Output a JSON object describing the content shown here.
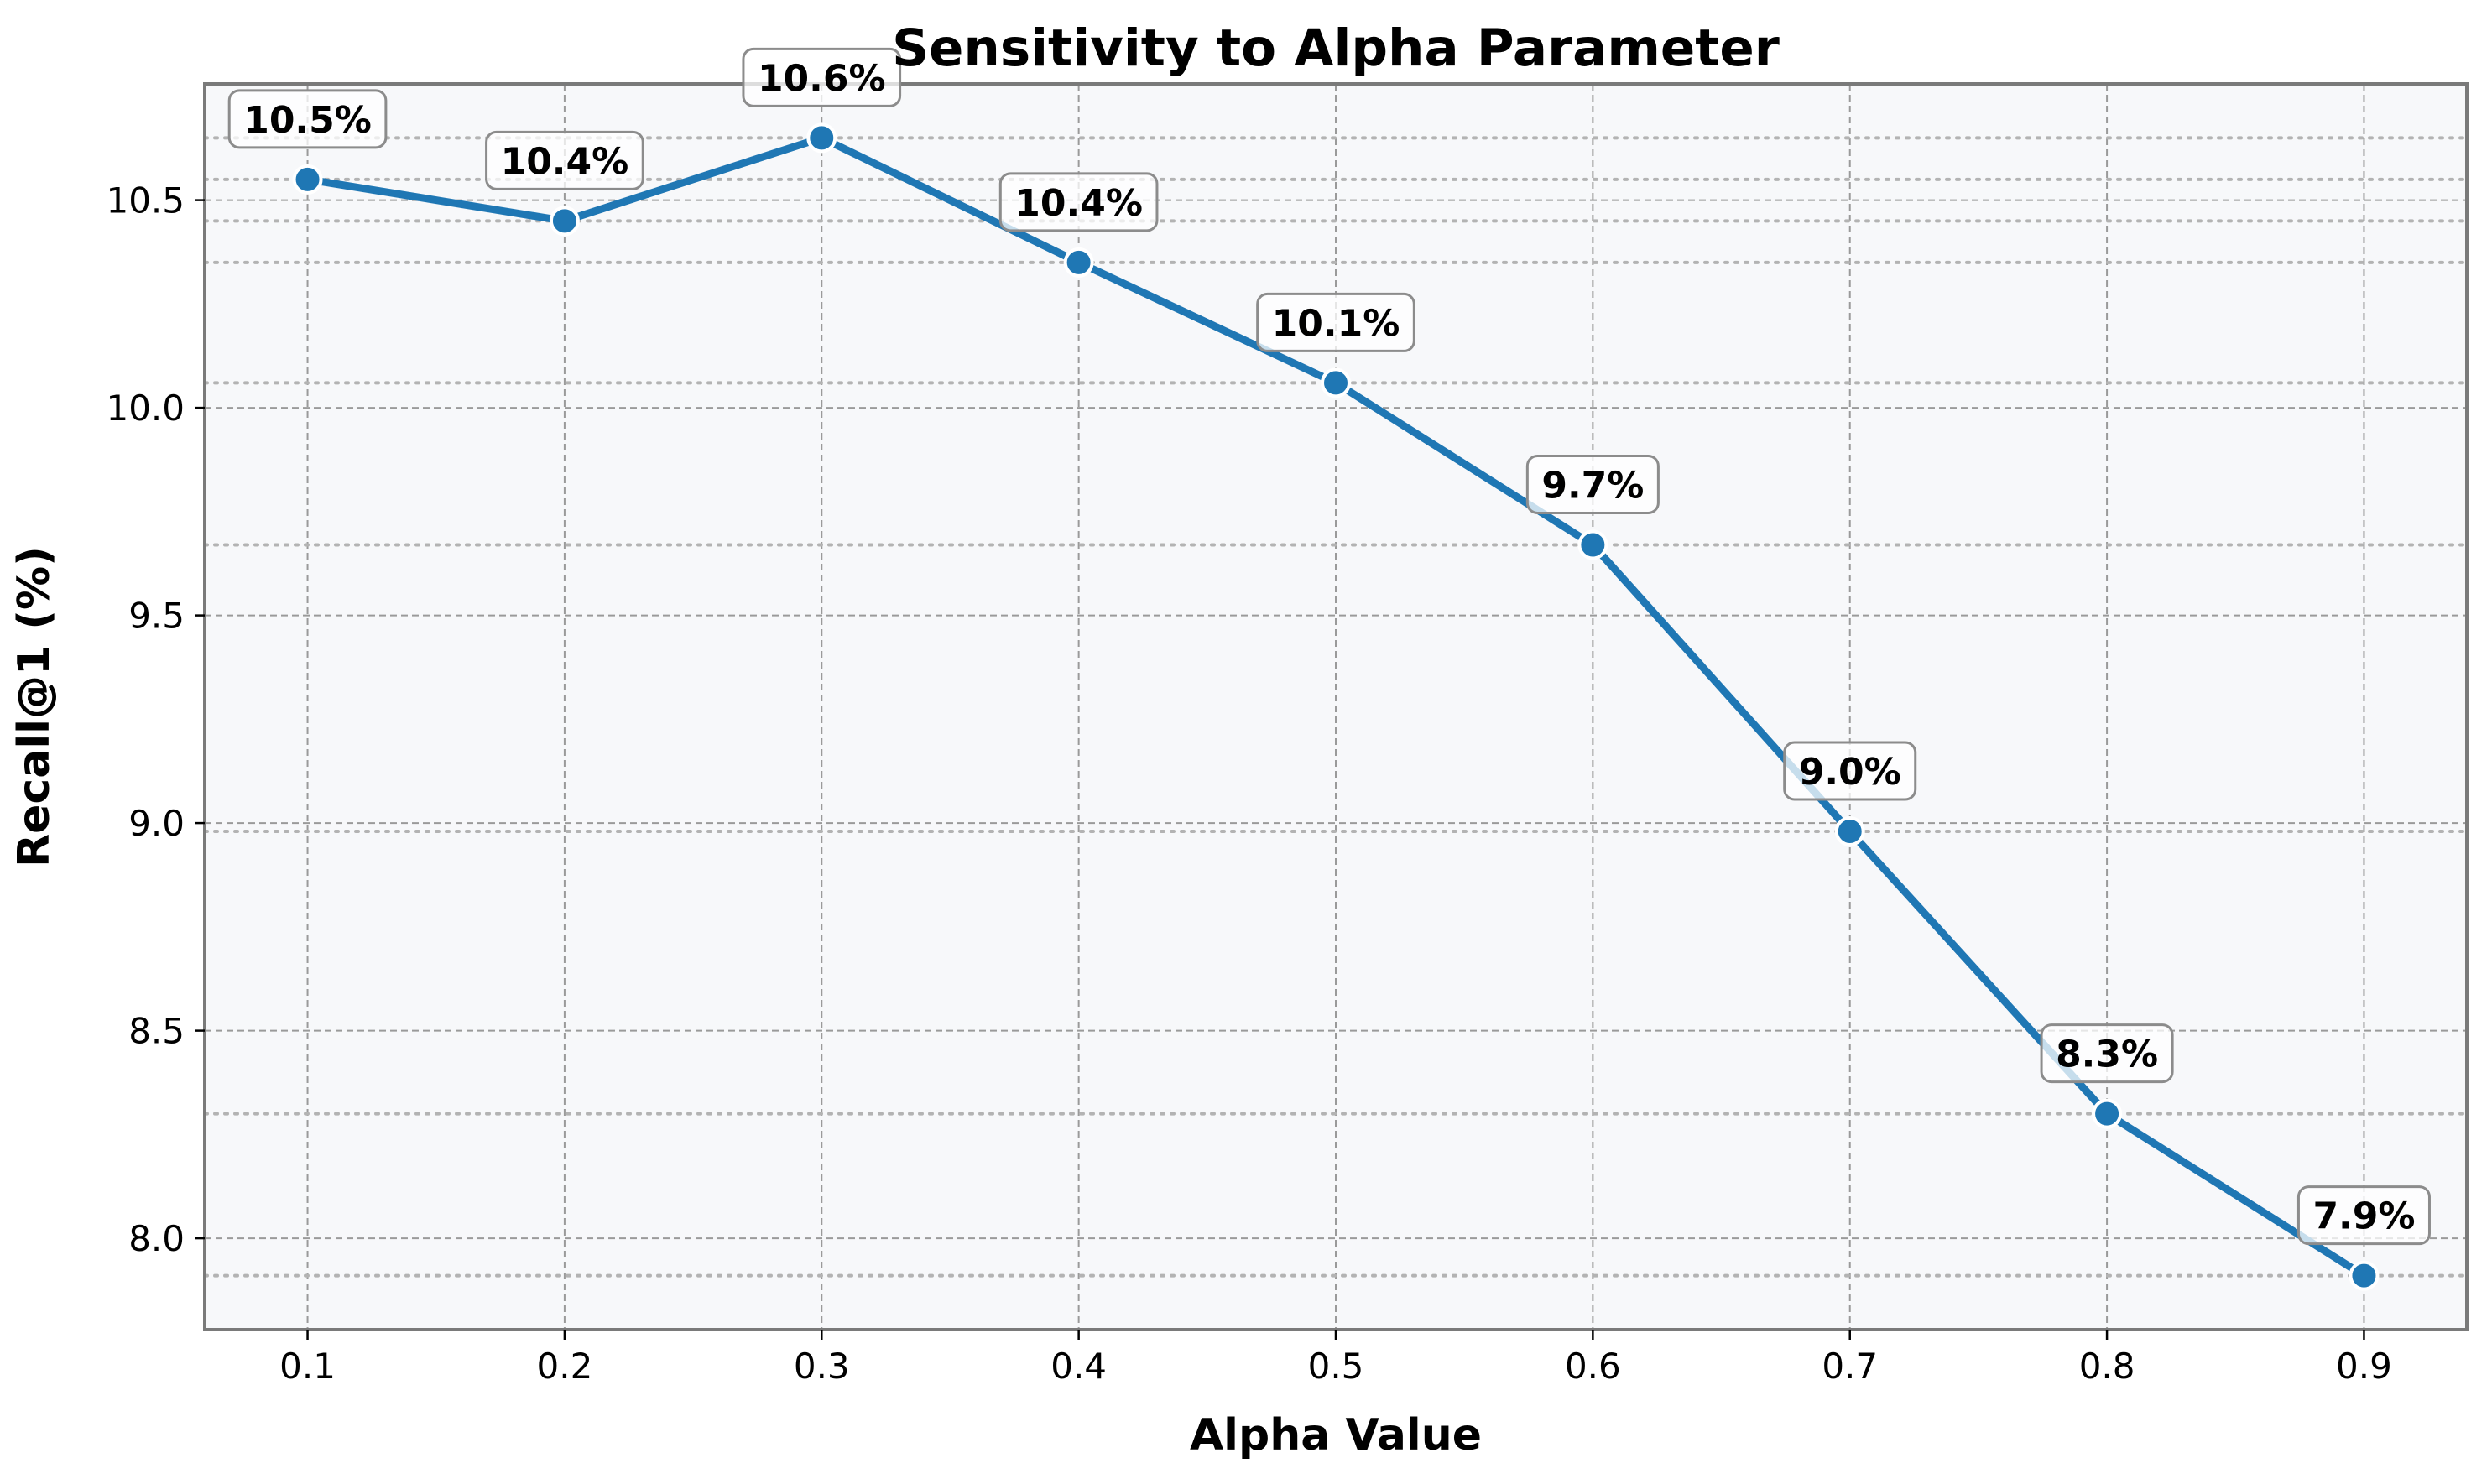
{
  "colors": {
    "line": "#1f77b4",
    "marker_edge": "#ffffff",
    "plot_background": "#f7f8fa",
    "grid": "#9a9a9a",
    "frame": "#7a7a7a"
  },
  "chart_data": {
    "type": "line",
    "title": "Sensitivity to Alpha Parameter",
    "xlabel": "Alpha Value",
    "ylabel": "Recall@1 (%)",
    "x": [
      0.1,
      0.2,
      0.3,
      0.4,
      0.5,
      0.6,
      0.7,
      0.8,
      0.9
    ],
    "series": [
      {
        "values": [
          10.55,
          10.45,
          10.65,
          10.35,
          10.06,
          9.67,
          8.98,
          8.3,
          7.91
        ],
        "data_labels": [
          "10.5%",
          "10.4%",
          "10.6%",
          "10.4%",
          "10.1%",
          "9.7%",
          "9.0%",
          "8.3%",
          "7.9%"
        ]
      }
    ],
    "xticks": [
      "0.1",
      "0.2",
      "0.3",
      "0.4",
      "0.5",
      "0.6",
      "0.7",
      "0.8",
      "0.9"
    ],
    "yticks": [
      "8.0",
      "8.5",
      "9.0",
      "9.5",
      "10.0",
      "10.5"
    ],
    "xlim": [
      0.06,
      0.94
    ],
    "ylim": [
      7.78,
      10.78
    ],
    "grid": true,
    "legend": "none"
  }
}
